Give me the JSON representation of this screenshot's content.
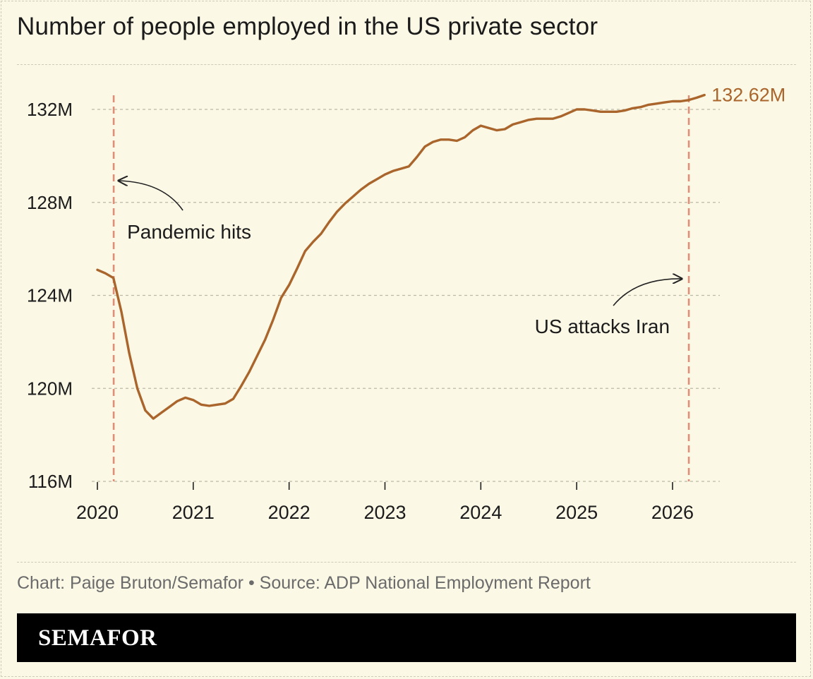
{
  "title": "Number of people employed in the US private sector",
  "credit": "Chart: Paige Bruton/Semafor • Source: ADP National Employment Report",
  "brand": "SEMAFOR",
  "colors": {
    "background": "#fbf8e6",
    "line": "#a9652b",
    "event_line": "#dd8f78",
    "grid": "#bdb8a6",
    "text": "#1b1b1b"
  },
  "chart_data": {
    "type": "line",
    "title": "Number of people employed in the US private sector",
    "xlabel": "",
    "ylabel": "",
    "xlim": [
      2020.0,
      2026.35
    ],
    "ylim": [
      116,
      133.5
    ],
    "y_ticks": [
      116,
      120,
      124,
      128,
      132
    ],
    "y_tick_labels": [
      "116M",
      "120M",
      "124M",
      "128M",
      "132M"
    ],
    "x_ticks": [
      2020,
      2021,
      2022,
      2023,
      2024,
      2025,
      2026
    ],
    "x_tick_labels": [
      "2020",
      "2021",
      "2022",
      "2023",
      "2024",
      "2025",
      "2026"
    ],
    "grid": true,
    "end_label": "132.62M",
    "series": [
      {
        "x": [
          2020.0,
          2020.083,
          2020.167,
          2020.25,
          2020.333,
          2020.417,
          2020.5,
          2020.583,
          2020.667,
          2020.75,
          2020.833,
          2020.917,
          2021.0,
          2021.083,
          2021.167,
          2021.25,
          2021.333,
          2021.417,
          2021.5,
          2021.583,
          2021.667,
          2021.75,
          2021.833,
          2021.917,
          2022.0,
          2022.083,
          2022.167,
          2022.25,
          2022.333,
          2022.417,
          2022.5,
          2022.583,
          2022.667,
          2022.75,
          2022.833,
          2022.917,
          2023.0,
          2023.083,
          2023.167,
          2023.25,
          2023.333,
          2023.417,
          2023.5,
          2023.583,
          2023.667,
          2023.75,
          2023.833,
          2023.917,
          2024.0,
          2024.083,
          2024.167,
          2024.25,
          2024.333,
          2024.417,
          2024.5,
          2024.583,
          2024.667,
          2024.75,
          2024.833,
          2024.917,
          2025.0,
          2025.083,
          2025.167,
          2025.25,
          2025.333,
          2025.417,
          2025.5,
          2025.583,
          2025.667,
          2025.75,
          2025.833,
          2025.917,
          2026.0,
          2026.083,
          2026.167,
          2026.25,
          2026.333
        ],
        "values": [
          125.1,
          124.95,
          124.75,
          123.3,
          121.5,
          120.0,
          119.05,
          118.7,
          118.95,
          119.2,
          119.45,
          119.6,
          119.5,
          119.3,
          119.25,
          119.3,
          119.35,
          119.55,
          120.1,
          120.7,
          121.4,
          122.1,
          122.95,
          123.9,
          124.45,
          125.15,
          125.9,
          126.3,
          126.65,
          127.15,
          127.6,
          127.95,
          128.25,
          128.55,
          128.8,
          129.0,
          129.2,
          129.35,
          129.45,
          129.55,
          129.95,
          130.4,
          130.6,
          130.7,
          130.7,
          130.65,
          130.8,
          131.1,
          131.3,
          131.2,
          131.1,
          131.15,
          131.35,
          131.45,
          131.55,
          131.6,
          131.6,
          131.6,
          131.7,
          131.85,
          132.0,
          132.0,
          131.95,
          131.9,
          131.9,
          131.9,
          131.95,
          132.05,
          132.1,
          132.2,
          132.25,
          132.3,
          132.35,
          132.35,
          132.4,
          132.5,
          132.62
        ]
      }
    ],
    "annotations": [
      {
        "label": "Pandemic hits",
        "x": 2020.17
      },
      {
        "label": "US attacks Iran",
        "x": 2026.17
      }
    ]
  }
}
